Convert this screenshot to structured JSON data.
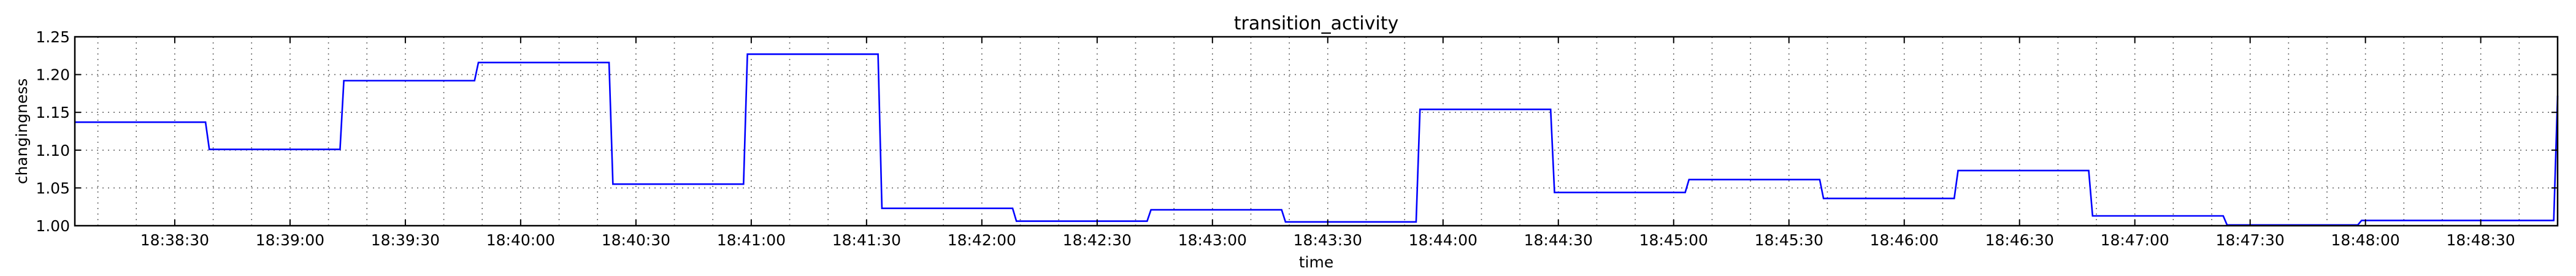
{
  "chart_data": {
    "type": "line",
    "title": "transition_activity",
    "xlabel": "time",
    "ylabel": "changingness",
    "ylim": [
      1.0,
      1.25
    ],
    "yticks": [
      1.0,
      1.05,
      1.1,
      1.15,
      1.2,
      1.25
    ],
    "ytick_labels": [
      "1.00",
      "1.05",
      "1.10",
      "1.15",
      "1.20",
      "1.25"
    ],
    "xlim": [
      "18:38:04",
      "18:48:50"
    ],
    "xticks": [
      "18:38:30",
      "18:39:00",
      "18:39:30",
      "18:40:00",
      "18:40:30",
      "18:41:00",
      "18:41:30",
      "18:42:00",
      "18:42:30",
      "18:43:00",
      "18:43:30",
      "18:44:00",
      "18:44:30",
      "18:45:00",
      "18:45:30",
      "18:46:00",
      "18:46:30",
      "18:47:00",
      "18:47:30",
      "18:48:00",
      "18:48:30"
    ],
    "grid": true,
    "series": [
      {
        "color": "#0000ff",
        "points": [
          [
            "18:38:04",
            1.137
          ],
          [
            "18:38:38",
            1.137
          ],
          [
            "18:38:39",
            1.101
          ],
          [
            "18:39:13",
            1.101
          ],
          [
            "18:39:14",
            1.192
          ],
          [
            "18:39:48",
            1.192
          ],
          [
            "18:39:49",
            1.216
          ],
          [
            "18:40:23",
            1.216
          ],
          [
            "18:40:24",
            1.055
          ],
          [
            "18:40:58",
            1.055
          ],
          [
            "18:40:59",
            1.227
          ],
          [
            "18:41:33",
            1.227
          ],
          [
            "18:41:34",
            1.023
          ],
          [
            "18:42:08",
            1.023
          ],
          [
            "18:42:09",
            1.006
          ],
          [
            "18:42:43",
            1.006
          ],
          [
            "18:42:44",
            1.021
          ],
          [
            "18:43:18",
            1.021
          ],
          [
            "18:43:19",
            1.005
          ],
          [
            "18:43:53",
            1.005
          ],
          [
            "18:43:54",
            1.154
          ],
          [
            "18:44:28",
            1.154
          ],
          [
            "18:44:29",
            1.044
          ],
          [
            "18:45:03",
            1.044
          ],
          [
            "18:45:04",
            1.061
          ],
          [
            "18:45:38",
            1.061
          ],
          [
            "18:45:39",
            1.036
          ],
          [
            "18:46:13",
            1.036
          ],
          [
            "18:46:14",
            1.073
          ],
          [
            "18:46:48",
            1.073
          ],
          [
            "18:46:49",
            1.013
          ],
          [
            "18:47:23",
            1.013
          ],
          [
            "18:47:24",
            1.001
          ],
          [
            "18:47:58",
            1.001
          ],
          [
            "18:47:59",
            1.007
          ],
          [
            "18:48:49",
            1.007
          ],
          [
            "18:48:50",
            1.172
          ]
        ]
      }
    ]
  }
}
